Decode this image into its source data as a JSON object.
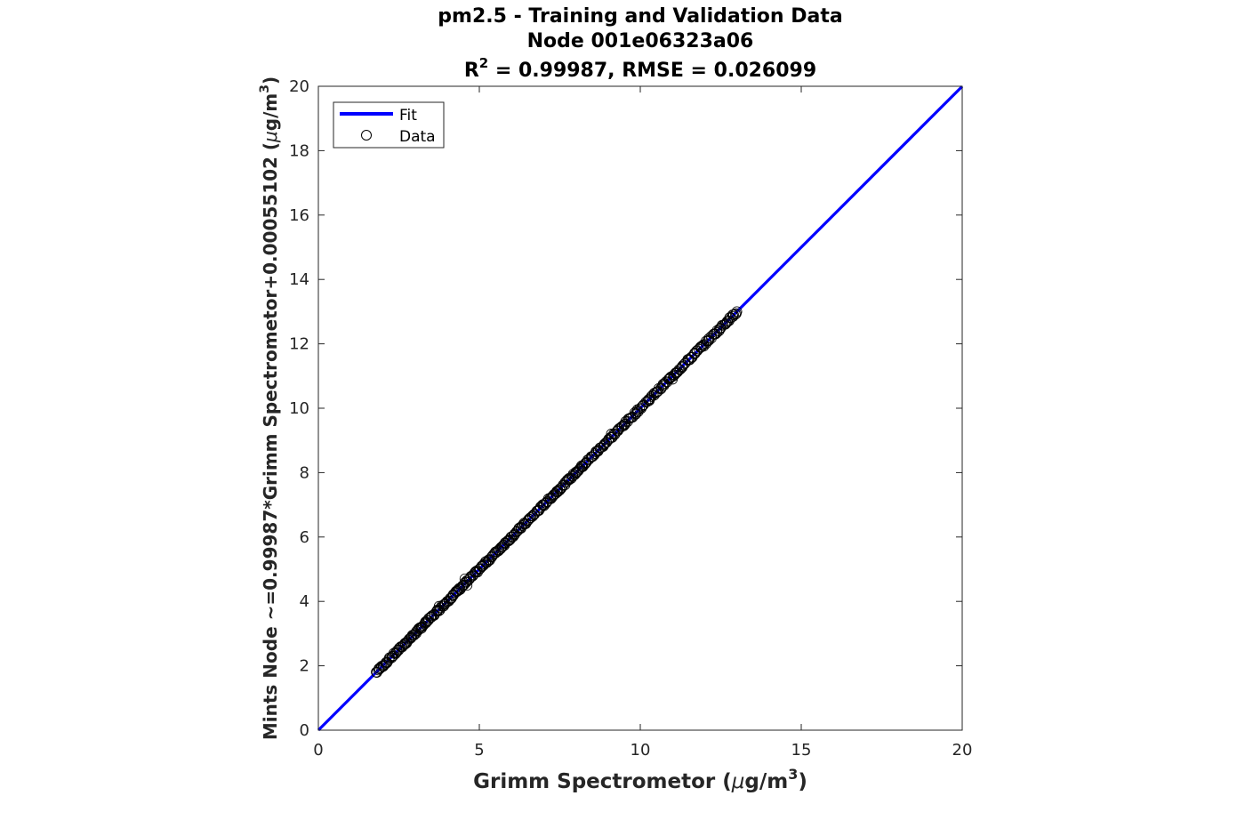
{
  "chart_data": {
    "type": "scatter",
    "title_lines": {
      "line1": "pm2.5 - Training and Validation Data",
      "line2": "Node 001e06323a06",
      "line3_prefix": "R",
      "line3_sup": "2",
      "line3_suffix": " = 0.99987, RMSE = 0.026099"
    },
    "xlabel": {
      "prefix": "Grimm Spectrometor (",
      "mu": "μ",
      "unit": "g/m",
      "sup": "3",
      "suffix": ")"
    },
    "ylabel": {
      "prefix": "Mints Node ~=0.99987*Grimm Spectrometor+0.00055102 (",
      "mu": "μ",
      "unit": "g/m",
      "sup": "3",
      "suffix": ")"
    },
    "xlim": [
      0,
      20
    ],
    "ylim": [
      0,
      20
    ],
    "xticks": [
      0,
      5,
      10,
      15,
      20
    ],
    "yticks": [
      0,
      2,
      4,
      6,
      8,
      10,
      12,
      14,
      16,
      18,
      20
    ],
    "grid": false,
    "legend_position": "top-left",
    "legend": [
      {
        "label": "Fit",
        "kind": "line"
      },
      {
        "label": "Data",
        "kind": "marker"
      }
    ],
    "fit": {
      "slope": 0.99987,
      "intercept": 0.00055102,
      "x_range": [
        0,
        20
      ],
      "color": "#0000ff"
    },
    "data_series": {
      "name": "Data",
      "marker": "circle",
      "color": "#000000",
      "x_range": [
        1.8,
        13.0
      ],
      "x": [
        1.8,
        1.9,
        2.0,
        2.1,
        2.2,
        2.3,
        2.4,
        2.5,
        2.6,
        2.7,
        2.8,
        2.9,
        3.0,
        3.1,
        3.2,
        3.3,
        3.4,
        3.5,
        3.6,
        3.7,
        3.8,
        3.9,
        4.0,
        4.1,
        4.2,
        4.3,
        4.4,
        4.5,
        4.6,
        4.7,
        4.8,
        4.9,
        5.0,
        5.1,
        5.2,
        5.3,
        5.4,
        5.5,
        5.6,
        5.7,
        5.8,
        5.9,
        6.0,
        6.1,
        6.2,
        6.3,
        6.4,
        6.5,
        6.6,
        6.7,
        6.8,
        6.9,
        7.0,
        7.1,
        7.2,
        7.3,
        7.4,
        7.5,
        7.6,
        7.7,
        7.8,
        7.9,
        8.0,
        8.1,
        8.2,
        8.3,
        8.5,
        8.7,
        8.9,
        9.1,
        9.3,
        9.5,
        9.7,
        9.9,
        10.1,
        10.3,
        10.5,
        10.7,
        10.9,
        11.1,
        11.3,
        11.5,
        11.7,
        11.9,
        12.1,
        12.3,
        12.5,
        12.7,
        12.9,
        13.0,
        4.55,
        4.62,
        3.75,
        9.1,
        11.0
      ],
      "y": [
        1.8,
        1.9,
        2.0,
        2.1,
        2.2,
        2.3,
        2.4,
        2.5,
        2.6,
        2.7,
        2.8,
        2.9,
        3.0,
        3.1,
        3.2,
        3.3,
        3.4,
        3.5,
        3.6,
        3.7,
        3.8,
        3.9,
        4.0,
        4.1,
        4.2,
        4.3,
        4.4,
        4.5,
        4.6,
        4.7,
        4.8,
        4.9,
        5.0,
        5.1,
        5.2,
        5.3,
        5.4,
        5.5,
        5.6,
        5.7,
        5.8,
        5.9,
        6.0,
        6.1,
        6.2,
        6.3,
        6.4,
        6.5,
        6.6,
        6.7,
        6.8,
        6.9,
        7.0,
        7.1,
        7.2,
        7.3,
        7.4,
        7.5,
        7.6,
        7.7,
        7.8,
        7.9,
        8.0,
        8.1,
        8.2,
        8.3,
        8.5,
        8.7,
        8.9,
        9.1,
        9.3,
        9.5,
        9.7,
        9.9,
        10.1,
        10.3,
        10.5,
        10.7,
        10.9,
        11.1,
        11.3,
        11.5,
        11.7,
        11.9,
        12.1,
        12.3,
        12.5,
        12.7,
        12.9,
        13.0,
        4.7,
        4.5,
        3.85,
        9.2,
        10.9
      ]
    }
  }
}
